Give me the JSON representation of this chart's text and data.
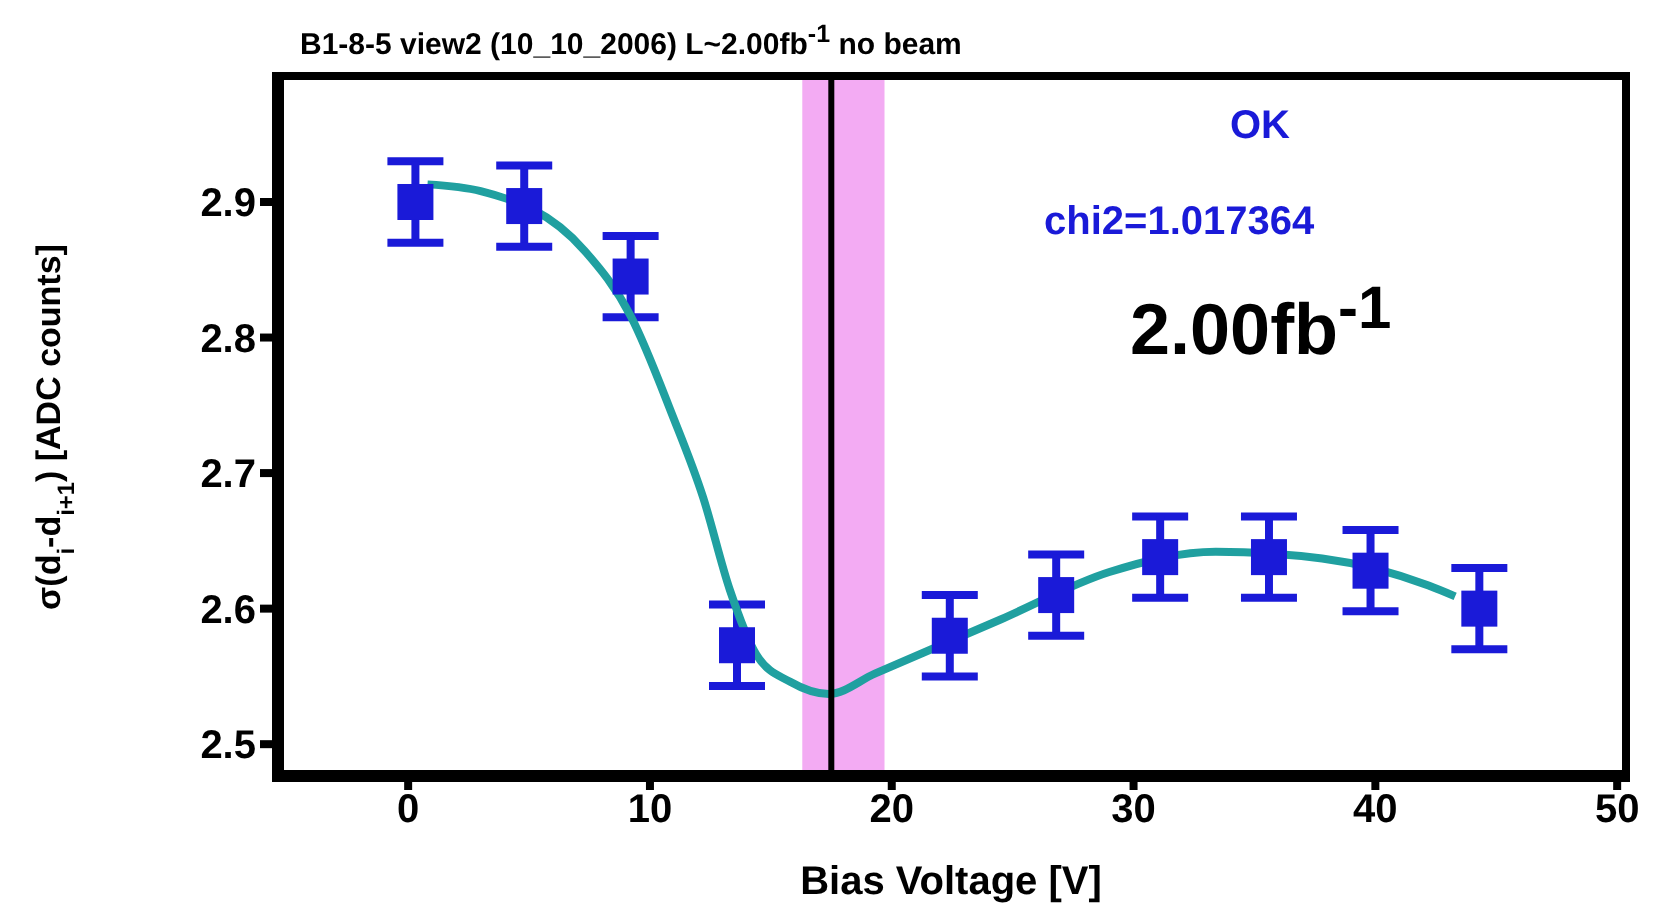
{
  "chart_data": {
    "type": "scatter",
    "title": "B1-8-5 view2 (10_10_2006) L~2.00fb$^{-1}$ no beam",
    "xlabel": "Bias Voltage [V]",
    "ylabel": "σ(d$_{i}$-d$_{i+1}$) [ADC counts]",
    "annotations": [
      "OK",
      "chi2=1.017364",
      "2.00fb$^{-1}$"
    ],
    "series": [
      {
        "color": "#1a1ad8",
        "marker": "square",
        "x": [
          0.3,
          4.8,
          9.2,
          13.6,
          22.4,
          26.8,
          31.1,
          35.6,
          39.8,
          44.3
        ],
        "values": [
          2.9,
          2.897,
          2.845,
          2.573,
          2.58,
          2.61,
          2.638,
          2.638,
          2.628,
          2.6
        ],
        "errors": [
          0.03,
          0.03,
          0.03,
          0.03,
          0.03,
          0.03,
          0.03,
          0.03,
          0.03,
          0.03
        ]
      },
      {
        "type": "line",
        "color": "#20a0a0",
        "marker": "none",
        "x": [
          0.8,
          3,
          7.3,
          9.2,
          10.9,
          12.2,
          13.3,
          14.4,
          15.8,
          17.4,
          19.3,
          24.5,
          29,
          33.4,
          37.8,
          42.2,
          43.3
        ],
        "values": [
          2.913,
          2.908,
          2.864,
          2.816,
          2.744,
          2.682,
          2.614,
          2.566,
          2.546,
          2.537,
          2.552,
          2.592,
          2.627,
          2.642,
          2.637,
          2.617,
          2.609
        ]
      }
    ],
    "ref_lines": [
      {
        "axis": "x",
        "value": 17.5,
        "color": "#000000"
      }
    ],
    "bands": [
      {
        "axis": "x",
        "from": 16.3,
        "to": 19.7,
        "color": "#ee88ee"
      }
    ],
    "xlim": [
      -5.3,
      50.2
    ],
    "xticks": [
      0,
      10,
      20,
      30,
      40,
      50
    ],
    "ylim": [
      2.478,
      2.99
    ],
    "yticks": [
      2.5,
      2.6,
      2.7,
      2.8,
      2.9
    ]
  }
}
